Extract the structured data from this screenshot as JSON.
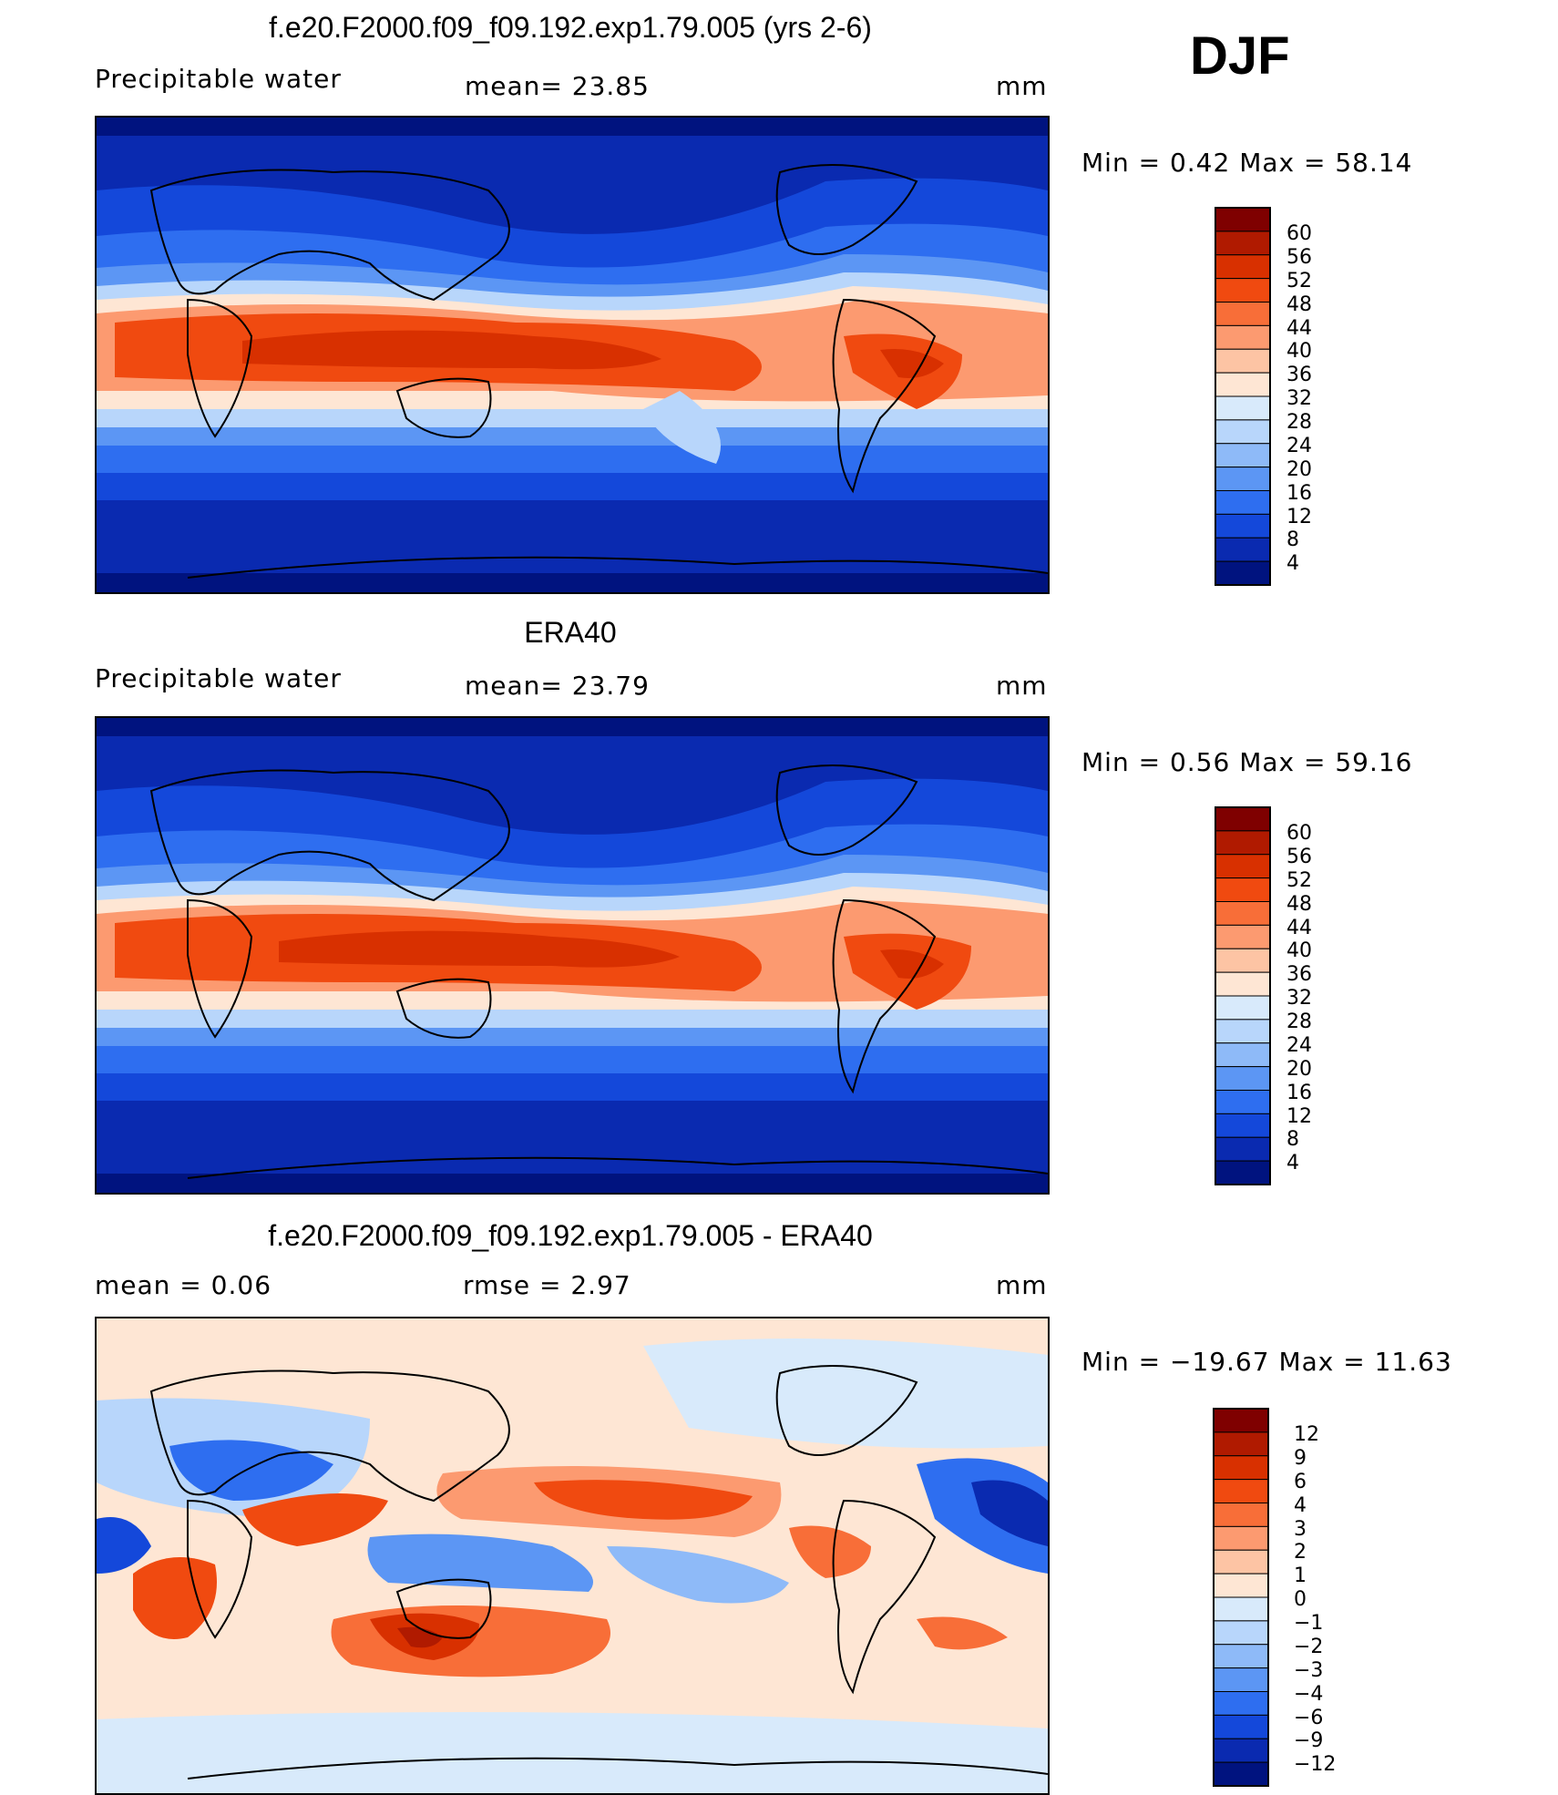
{
  "season": "DJF",
  "panels": [
    {
      "id": "model",
      "title": "f.e20.F2000.f09_f09.192.exp1.79.005 (yrs 2-6)",
      "left_label": "Precipitable  water",
      "center_label": "mean=   23.85",
      "right_label": "mm",
      "minmax": "Min  =     0.42  Max  =    58.14",
      "colorbar": {
        "labels": [
          "60",
          "56",
          "52",
          "48",
          "44",
          "40",
          "36",
          "32",
          "28",
          "24",
          "20",
          "16",
          "12",
          "8",
          "4"
        ],
        "colors": [
          "#7f0000",
          "#b01a00",
          "#d83000",
          "#f04a10",
          "#f86e38",
          "#fc9a70",
          "#fdc4a4",
          "#fee6d4",
          "#d8eafb",
          "#b8d6fb",
          "#8ebaf8",
          "#5c96f4",
          "#2e6ef0",
          "#1448da",
          "#0a2ab0",
          "#00137f"
        ]
      },
      "map_note": "Precipitable water field"
    },
    {
      "id": "obs",
      "title": "ERA40",
      "left_label": "Precipitable  water",
      "center_label": "mean=   23.79",
      "right_label": "mm",
      "minmax": "Min  =     0.56  Max  =    59.16",
      "colorbar": {
        "labels": [
          "60",
          "56",
          "52",
          "48",
          "44",
          "40",
          "36",
          "32",
          "28",
          "24",
          "20",
          "16",
          "12",
          "8",
          "4"
        ],
        "colors": [
          "#7f0000",
          "#b01a00",
          "#d83000",
          "#f04a10",
          "#f86e38",
          "#fc9a70",
          "#fdc4a4",
          "#fee6d4",
          "#d8eafb",
          "#b8d6fb",
          "#8ebaf8",
          "#5c96f4",
          "#2e6ef0",
          "#1448da",
          "#0a2ab0",
          "#00137f"
        ]
      }
    },
    {
      "id": "diff",
      "title": "f.e20.F2000.f09_f09.192.exp1.79.005 - ERA40",
      "left_label": "mean  =     0.06",
      "center_label": "rmse  =     2.97",
      "right_label": "mm",
      "minmax": "Min  = −19.67  Max  =    11.63",
      "colorbar": {
        "labels": [
          "12",
          "9",
          "6",
          "4",
          "3",
          "2",
          "1",
          "0",
          "−1",
          "−2",
          "−3",
          "−4",
          "−6",
          "−9",
          "−12"
        ],
        "colors": [
          "#7f0000",
          "#b01a00",
          "#d83000",
          "#f04a10",
          "#f86e38",
          "#fc9a70",
          "#fdc4a4",
          "#fee6d4",
          "#d8eafb",
          "#b8d6fb",
          "#8ebaf8",
          "#5c96f4",
          "#2e6ef0",
          "#1448da",
          "#0a2ab0",
          "#00137f"
        ]
      }
    }
  ]
}
